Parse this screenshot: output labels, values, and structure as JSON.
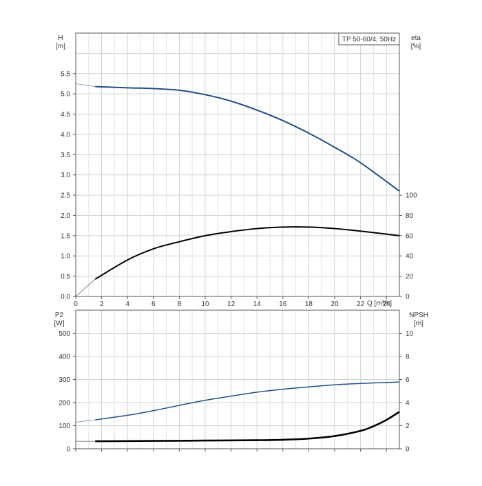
{
  "chart_data": [
    {
      "type": "line",
      "title": "TP 50-60/4, 50Hz",
      "xlabel": "Q [m³/h]",
      "xlim": [
        0,
        25
      ],
      "x_ticks": [
        0,
        2,
        4,
        6,
        8,
        10,
        12,
        14,
        16,
        18,
        20,
        22,
        24
      ],
      "grid": true,
      "left_axis": {
        "label": "H",
        "unit": "[m]",
        "ylim": [
          0,
          5.5
        ],
        "ticks": [
          "0.0",
          "0.5",
          "1.0",
          "1.5",
          "2.0",
          "2.5",
          "3.0",
          "3.5",
          "4.0",
          "4.5",
          "5.0",
          "5.5"
        ]
      },
      "right_axis": {
        "label": "eta",
        "unit": "[%]",
        "ylim": [
          0,
          100
        ],
        "ticks": [
          "0",
          "20",
          "40",
          "60",
          "80",
          "100"
        ]
      },
      "series": [
        {
          "axis": "left",
          "color": "#1f4e8c",
          "x": [
            0,
            1.5,
            4,
            6,
            8,
            10,
            12,
            14,
            16,
            18,
            20,
            22,
            25
          ],
          "y": [
            5.25,
            5.18,
            5.15,
            5.13,
            5.09,
            4.98,
            4.82,
            4.6,
            4.34,
            4.03,
            3.68,
            3.3,
            2.6
          ]
        },
        {
          "axis": "right",
          "color": "#000000",
          "x": [
            0,
            1.5,
            4,
            6,
            8,
            10,
            12,
            14,
            16,
            18,
            20,
            22,
            25
          ],
          "y": [
            0,
            17,
            36,
            47,
            54,
            60,
            64,
            67,
            68.5,
            68.5,
            67,
            64.5,
            60
          ]
        }
      ]
    },
    {
      "type": "line",
      "xlim": [
        0,
        25
      ],
      "grid": true,
      "left_axis": {
        "label": "P2",
        "unit": "[W]",
        "ylim": [
          0,
          600
        ],
        "ticks": [
          "0",
          "100",
          "200",
          "300",
          "400",
          "500"
        ]
      },
      "right_axis": {
        "label": "NPSH",
        "unit": "[m]",
        "ylim": [
          0,
          12
        ],
        "ticks": [
          "0",
          "2",
          "4",
          "6",
          "8",
          "10"
        ]
      },
      "series": [
        {
          "axis": "left",
          "color": "#1f4e8c",
          "x": [
            0,
            1.5,
            4,
            6,
            8,
            10,
            12,
            14,
            16,
            18,
            20,
            22,
            25
          ],
          "y": [
            115,
            125,
            145,
            165,
            188,
            210,
            228,
            245,
            258,
            268,
            277,
            283,
            289
          ]
        },
        {
          "axis": "right",
          "color": "#000000",
          "x": [
            0,
            1.5,
            6,
            10,
            14,
            16,
            18,
            20,
            22,
            23,
            24,
            25
          ],
          "y": [
            0.65,
            0.65,
            0.68,
            0.71,
            0.74,
            0.78,
            0.88,
            1.1,
            1.55,
            1.95,
            2.5,
            3.2
          ]
        }
      ]
    }
  ]
}
